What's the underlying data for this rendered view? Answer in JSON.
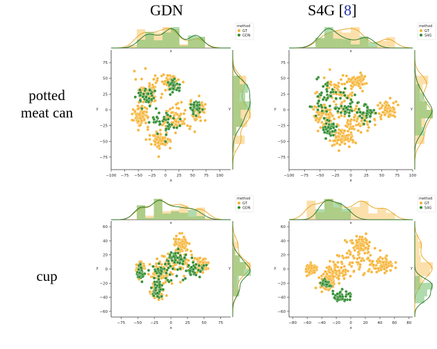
{
  "column_titles": [
    {
      "text": "GDN",
      "ref": ""
    },
    {
      "text": "S4G [",
      "ref": "8",
      "close": "]"
    }
  ],
  "row_labels": [
    {
      "line1": "potted",
      "line2": "meat can"
    },
    {
      "line1": "cup",
      "line2": ""
    }
  ],
  "colors": {
    "GT": "#f5b335",
    "GDN": "#2e8b2e",
    "S4G": "#2e8b2e",
    "GT_fill": "#f7c766",
    "method_fill": "#6fbd6a"
  },
  "chart_data": [
    {
      "type": "scatter",
      "object": "potted meat can",
      "method": "GDN",
      "xlabel": "x",
      "ylabel": "y",
      "xlim": [
        -100,
        120
      ],
      "ylim": [
        -95,
        95
      ],
      "xticks": [
        -100,
        -75,
        -50,
        -25,
        0,
        25,
        50,
        75,
        100
      ],
      "yticks": [
        -75,
        -50,
        -25,
        0,
        25,
        50,
        75
      ],
      "legend": {
        "title": "method",
        "entries": [
          "GT",
          "GDN"
        ],
        "placement": "top-right"
      },
      "series": [
        {
          "name": "GT",
          "clusters": [
            [
              -30,
              30,
              22,
              18
            ],
            [
              15,
              -15,
              28,
              22
            ],
            [
              -45,
              -10,
              12,
              15
            ],
            [
              60,
              0,
              12,
              12
            ],
            [
              10,
              45,
              12,
              8
            ],
            [
              -10,
              -50,
              18,
              10
            ]
          ]
        },
        {
          "name": "GDN",
          "clusters": [
            [
              0,
              -20,
              22,
              16
            ],
            [
              -35,
              20,
              14,
              14
            ],
            [
              55,
              5,
              10,
              10
            ],
            [
              15,
              40,
              8,
              10
            ]
          ]
        }
      ]
    },
    {
      "type": "scatter",
      "object": "potted meat can",
      "method": "S4G [8]",
      "xlabel": "x",
      "ylabel": "y",
      "xlim": [
        -100,
        100
      ],
      "ylim": [
        -95,
        95
      ],
      "xticks": [
        -100,
        -75,
        -50,
        -25,
        0,
        25,
        50,
        75,
        100
      ],
      "yticks": [
        -75,
        -50,
        -25,
        0,
        25,
        50,
        75
      ],
      "legend": {
        "title": "method",
        "entries": [
          "GT",
          "S4G"
        ],
        "placement": "top-right"
      },
      "series": [
        {
          "name": "GT",
          "clusters": [
            [
              -20,
              30,
              25,
              20
            ],
            [
              5,
              -15,
              28,
              22
            ],
            [
              -45,
              -10,
              12,
              15
            ],
            [
              60,
              0,
              12,
              12
            ],
            [
              10,
              45,
              12,
              8
            ],
            [
              -15,
              -45,
              18,
              12
            ]
          ]
        },
        {
          "name": "S4G",
          "clusters": [
            [
              -45,
              20,
              12,
              22
            ],
            [
              -5,
              10,
              18,
              20
            ],
            [
              -35,
              -30,
              10,
              12
            ],
            [
              25,
              -5,
              10,
              10
            ]
          ]
        }
      ]
    },
    {
      "type": "scatter",
      "object": "cup",
      "method": "GDN",
      "xlabel": "x",
      "ylabel": "y",
      "xlim": [
        -90,
        90
      ],
      "ylim": [
        -68,
        68
      ],
      "xticks": [
        -75,
        -50,
        -25,
        0,
        25,
        50,
        75
      ],
      "yticks": [
        -60,
        -40,
        -20,
        0,
        20,
        40,
        60
      ],
      "legend": {
        "title": "method",
        "entries": [
          "GT",
          "GDN"
        ],
        "placement": "top-right"
      },
      "series": [
        {
          "name": "GT",
          "clusters": [
            [
              10,
              10,
              22,
              15
            ],
            [
              15,
              35,
              8,
              12
            ],
            [
              -15,
              -5,
              15,
              12
            ],
            [
              45,
              5,
              10,
              8
            ],
            [
              -45,
              0,
              6,
              8
            ],
            [
              -20,
              -30,
              8,
              10
            ]
          ]
        },
        {
          "name": "GDN",
          "clusters": [
            [
              -10,
              -5,
              18,
              14
            ],
            [
              -45,
              -5,
              5,
              10
            ],
            [
              -20,
              -30,
              6,
              8
            ],
            [
              35,
              0,
              12,
              8
            ],
            [
              10,
              15,
              12,
              10
            ]
          ]
        }
      ]
    },
    {
      "type": "scatter",
      "object": "cup",
      "method": "S4G [8]",
      "xlabel": "x",
      "ylabel": "y",
      "xlim": [
        -85,
        85
      ],
      "ylim": [
        -68,
        68
      ],
      "xticks": [
        -80,
        -60,
        -40,
        -20,
        0,
        20,
        40,
        60,
        80
      ],
      "yticks": [
        -60,
        -40,
        -20,
        0,
        20,
        40,
        60
      ],
      "legend": {
        "title": "method",
        "entries": [
          "GT",
          "S4G"
        ],
        "placement": "top-right"
      },
      "series": [
        {
          "name": "GT",
          "clusters": [
            [
              10,
              15,
              22,
              18
            ],
            [
              15,
              35,
              8,
              10
            ],
            [
              -20,
              -5,
              15,
              12
            ],
            [
              45,
              5,
              12,
              8
            ],
            [
              -55,
              0,
              6,
              6
            ],
            [
              -35,
              -20,
              8,
              10
            ]
          ]
        },
        {
          "name": "S4G",
          "clusters": [
            [
              -15,
              -38,
              12,
              7
            ],
            [
              -35,
              -22,
              6,
              5
            ]
          ]
        }
      ]
    }
  ]
}
